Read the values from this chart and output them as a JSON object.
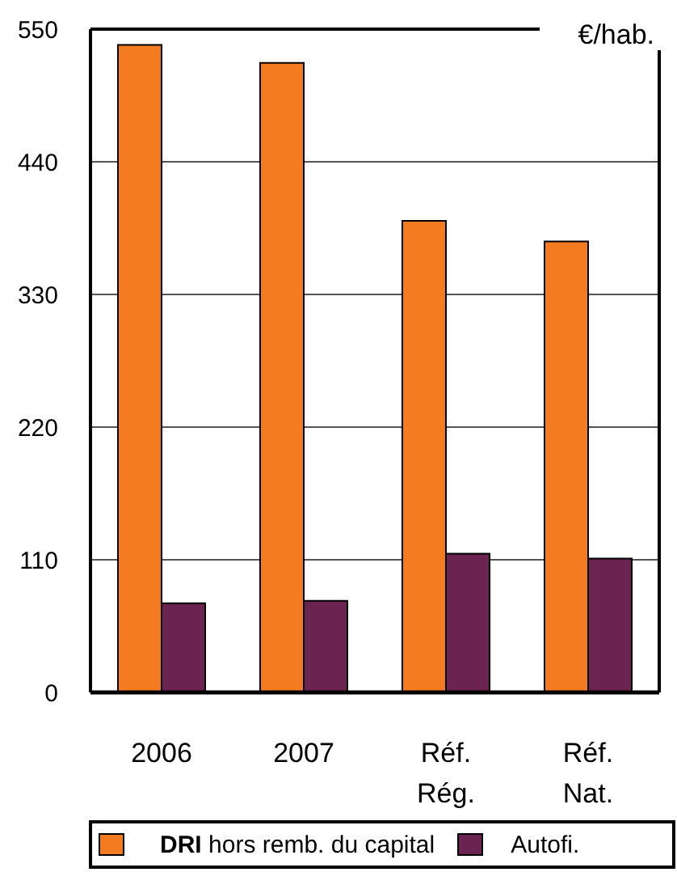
{
  "chart_data": {
    "type": "bar",
    "ylabel": "€/hab.",
    "categories": [
      "2006",
      "2007",
      "Réf. Rég.",
      "Réf. Nat."
    ],
    "series": [
      {
        "name": "DRI hors remb. du capital",
        "color": "#f47b20",
        "values": [
          537,
          522,
          391,
          374
        ]
      },
      {
        "name": "Autofi.",
        "color": "#6b2350",
        "values": [
          74,
          76,
          115,
          111
        ]
      }
    ],
    "ylim": [
      0,
      550
    ],
    "yticks": [
      0,
      110,
      220,
      330,
      440,
      550
    ],
    "grid": "y",
    "legend": "bottom"
  }
}
